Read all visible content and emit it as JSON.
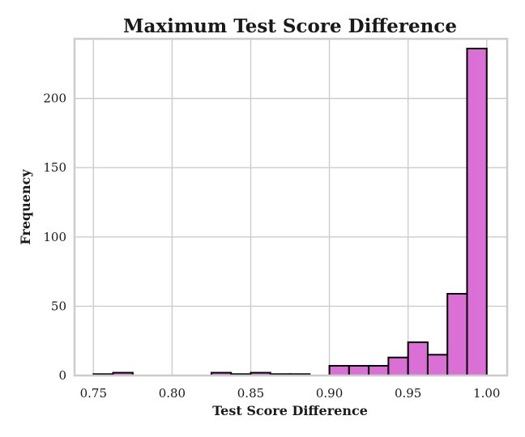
{
  "chart_data": {
    "type": "bar",
    "title": "Maximum Test Score Difference",
    "xlabel": "Test Score Difference",
    "ylabel": "Frequency",
    "xlim": [
      0.738,
      1.013
    ],
    "ylim": [
      0,
      243
    ],
    "x_ticks": [
      0.75,
      0.8,
      0.85,
      0.9,
      0.95,
      1.0
    ],
    "x_tick_labels": [
      "0.75",
      "0.80",
      "0.85",
      "0.90",
      "0.95",
      "1.00"
    ],
    "y_ticks": [
      0,
      50,
      100,
      150,
      200
    ],
    "y_tick_labels": [
      "0",
      "50",
      "100",
      "150",
      "200"
    ],
    "grid": true,
    "bar_color": "#da70d6",
    "bar_edge_color": "#000000",
    "bin_edges": [
      0.75,
      0.7625,
      0.775,
      0.7875,
      0.8,
      0.8125,
      0.825,
      0.8375,
      0.85,
      0.8625,
      0.875,
      0.8875,
      0.9,
      0.9125,
      0.925,
      0.9375,
      0.95,
      0.9625,
      0.975,
      0.9875,
      1.0
    ],
    "values": [
      1,
      2,
      0,
      0,
      0,
      0,
      2,
      1,
      2,
      1,
      1,
      0,
      7,
      7,
      7,
      13,
      24,
      15,
      59,
      236
    ]
  }
}
